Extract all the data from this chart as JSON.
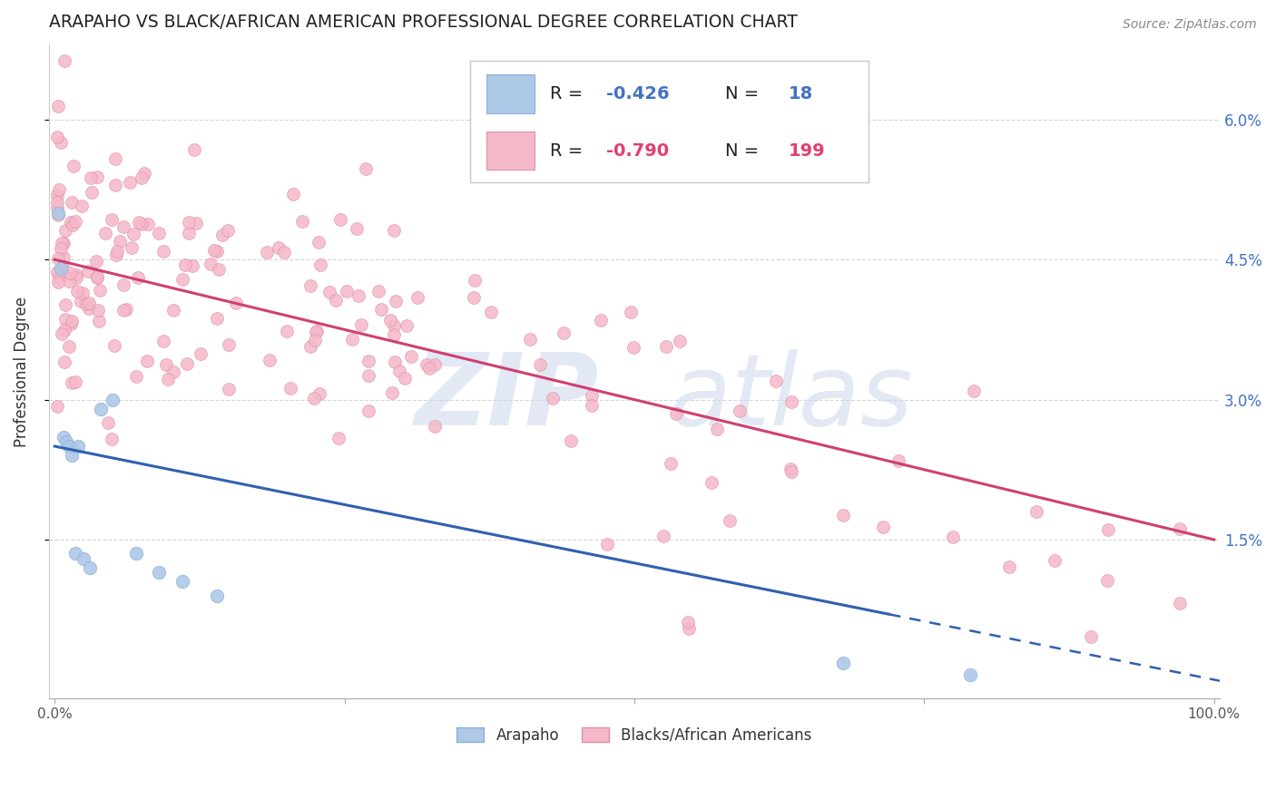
{
  "title": "ARAPAHO VS BLACK/AFRICAN AMERICAN PROFESSIONAL DEGREE CORRELATION CHART",
  "source": "Source: ZipAtlas.com",
  "ylabel": "Professional Degree",
  "legend_label1": "Arapaho",
  "legend_label2": "Blacks/African Americans",
  "blue_scatter_color": "#aec8e8",
  "blue_edge_color": "#8ab0d8",
  "pink_scatter_color": "#f5b8c8",
  "pink_edge_color": "#e090aa",
  "blue_line_color": "#3060b0",
  "pink_line_color": "#d04070",
  "R_blue": -0.426,
  "N_blue": 18,
  "R_pink": -0.79,
  "N_pink": 199,
  "ytick_color": "#4472c4",
  "legend_R_color": "#4472c4",
  "legend_text_color": "#333333"
}
